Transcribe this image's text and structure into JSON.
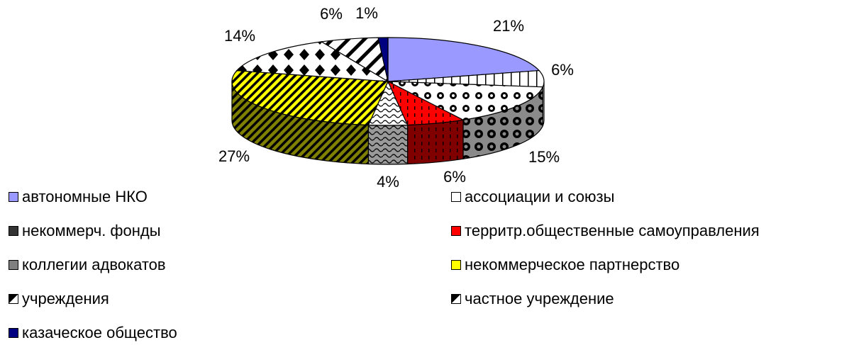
{
  "chart_data": {
    "type": "pie",
    "title": "",
    "three_d": true,
    "legend_position": "bottom",
    "series": [
      {
        "name": "автономные НКО",
        "label": "21%",
        "value": 21,
        "color": "#9999ff"
      },
      {
        "name": "ассоциации и союзы",
        "label": "6%",
        "value": 6,
        "color": "#ffffff"
      },
      {
        "name": "некоммерч. фонды",
        "label": "15%",
        "value": 15,
        "color": "#333333"
      },
      {
        "name": "территр.общественные самоуправления",
        "label": "6%",
        "value": 6,
        "color": "#ff0000"
      },
      {
        "name": "коллегии адвокатов",
        "label": "4%",
        "value": 4,
        "color": "#808080"
      },
      {
        "name": "некоммерческое партнерство",
        "label": "27%",
        "value": 27,
        "color": "#ffff00"
      },
      {
        "name": "учреждения",
        "label": "14%",
        "value": 14,
        "color": "#000000"
      },
      {
        "name": "частное учреждение",
        "label": "6%",
        "value": 6,
        "color": "#000000"
      },
      {
        "name": "казаческое общество",
        "label": "1%",
        "value": 1,
        "color": "#000080"
      }
    ]
  }
}
